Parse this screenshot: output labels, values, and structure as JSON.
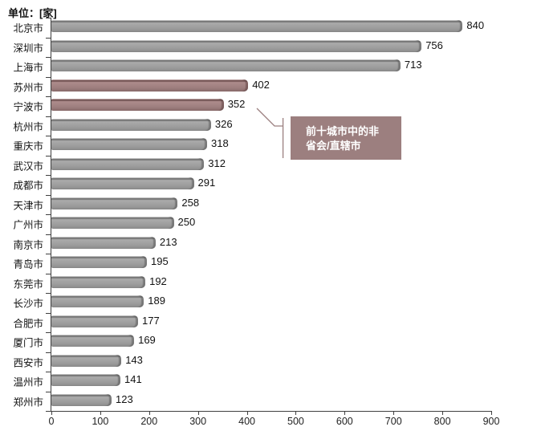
{
  "title": "单位：[家]",
  "colors": {
    "axis": "#3f3f3f",
    "bar_gray": "#9b9b9b",
    "bar_gray_dark": "#767676",
    "bar_gray_light": "#c9c9c9",
    "bar_accent": "#9d7e7e",
    "bar_accent_dark": "#755757",
    "bar_accent_light": "#c0a6a6",
    "annotation_bg": "#9c7f7f",
    "annotation_text": "#ffffff",
    "connector": "#9b7f7f"
  },
  "chart_data": {
    "type": "bar",
    "orientation": "horizontal",
    "title": "单位：[家]",
    "categories": [
      "北京市",
      "深圳市",
      "上海市",
      "苏州市",
      "宁波市",
      "杭州市",
      "重庆市",
      "武汉市",
      "成都市",
      "天津市",
      "广州市",
      "南京市",
      "青岛市",
      "东莞市",
      "长沙市",
      "合肥市",
      "厦门市",
      "西安市",
      "温州市",
      "郑州市"
    ],
    "values": [
      840,
      756,
      713,
      402,
      352,
      326,
      318,
      312,
      291,
      258,
      250,
      213,
      195,
      192,
      189,
      177,
      169,
      143,
      141,
      123
    ],
    "highlighted_indices": [
      3,
      4
    ],
    "highlight_meaning": "前十城市中的非省会/直辖市",
    "xlim": [
      0,
      900
    ],
    "x_ticks": [
      0,
      100,
      200,
      300,
      400,
      500,
      600,
      700,
      800,
      900
    ],
    "grid": false,
    "value_labels": true,
    "legend": null,
    "annotation": {
      "lines": [
        "前十城市中的非",
        "省会/直辖市"
      ]
    }
  }
}
